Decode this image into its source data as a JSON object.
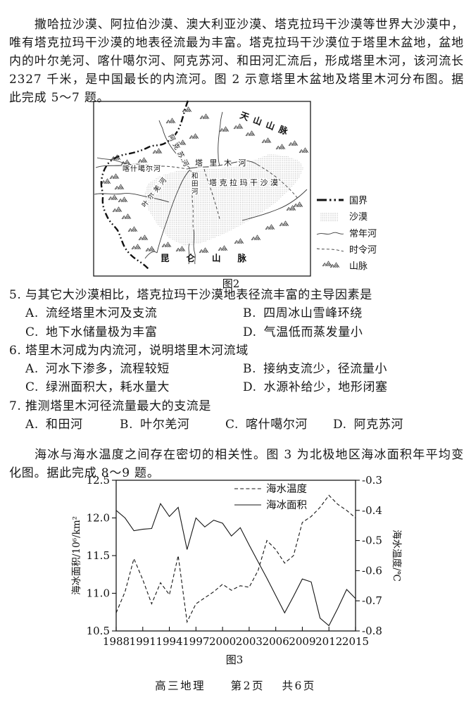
{
  "intro": {
    "text": "撒哈拉沙漠、阿拉伯沙漠、澳大利亚沙漠、塔克拉玛干沙漠等世界大沙漠中，唯有塔克拉玛干沙漠的地表径流最为丰富。塔克拉玛干沙漠位于塔里木盆地，盆地内的叶尔羌河、喀什噶尔河、阿克苏河、和田河汇流后，形成塔里木河，该河流长 2327 千米，是中国最长的内流河。图 2 示意塔里木盆地及塔里木河分布图。据此完成 5～7 题。"
  },
  "figure2": {
    "caption": "图2",
    "mountain_labels": {
      "tianshan": "天山山脉",
      "kunlun": "昆仑山脉"
    },
    "river_labels": {
      "aksu": "阿克苏河",
      "kashgar": "喀什噶尔河",
      "tarim": "塔里木河",
      "hotan": "和田河",
      "yarkand": "叶尔羌河"
    },
    "desert_label": "塔克拉玛干沙漠",
    "legend": [
      {
        "label": "国界"
      },
      {
        "label": "沙漠"
      },
      {
        "label": "常年河"
      },
      {
        "label": "时令河"
      },
      {
        "label": "山脉"
      }
    ]
  },
  "questions": [
    {
      "number": "5.",
      "stem": "与其它大沙漠相比，塔克拉玛干沙漠地表径流丰富的主导因素是",
      "options": [
        {
          "label": "A.",
          "text": "流经塔里木河及支流"
        },
        {
          "label": "B.",
          "text": "四周冰山雪峰环绕"
        },
        {
          "label": "C.",
          "text": "地下水储量极为丰富"
        },
        {
          "label": "D.",
          "text": "气温低而蒸发量小"
        }
      ]
    },
    {
      "number": "6.",
      "stem": "塔里木河成为内流河，说明塔里木河流域",
      "options": [
        {
          "label": "A.",
          "text": "河水下渗多，流程较短"
        },
        {
          "label": "B.",
          "text": "接纳支流少，径流量小"
        },
        {
          "label": "C.",
          "text": "绿洲面积大，耗水量大"
        },
        {
          "label": "D.",
          "text": "水源补给少，地形闭塞"
        }
      ]
    },
    {
      "number": "7.",
      "stem": "推测塔里木河径流量最大的支流是",
      "options": [
        {
          "label": "A.",
          "text": "和田河"
        },
        {
          "label": "B.",
          "text": "叶尔羌河"
        },
        {
          "label": "C.",
          "text": "喀什噶尔河"
        },
        {
          "label": "D.",
          "text": "阿克苏河"
        }
      ]
    }
  ],
  "passage2": {
    "text": "海冰与海水温度之间存在密切的相关性。图 3 为北极地区海冰面积年平均变化图。据此完成 8～9 题。"
  },
  "chart_data": {
    "type": "line",
    "caption": "图3",
    "x": [
      1988,
      1989,
      1990,
      1991,
      1992,
      1993,
      1994,
      1995,
      1996,
      1997,
      1998,
      1999,
      2000,
      2001,
      2002,
      2003,
      2004,
      2005,
      2006,
      2007,
      2008,
      2009,
      2010,
      2011,
      2012,
      2013,
      2014,
      2015
    ],
    "x_ticks": [
      1988,
      1991,
      1994,
      1997,
      2000,
      2003,
      2006,
      2009,
      2012,
      2015
    ],
    "left_axis": {
      "label": "海冰面积/10⁶/km²",
      "range": [
        10.5,
        12.5
      ],
      "ticks": [
        12.5,
        12.0,
        11.5,
        11.0,
        10.5
      ]
    },
    "right_axis": {
      "label": "海水温度/℃",
      "range": [
        -0.8,
        -0.3
      ],
      "ticks": [
        -0.3,
        -0.4,
        -0.5,
        -0.6,
        -0.7,
        -0.8
      ]
    },
    "grid": false,
    "legend_position": "top-right-inside",
    "series": [
      {
        "name": "海水温度",
        "style": "dashed",
        "axis": "right",
        "values": [
          -0.74,
          -0.67,
          -0.56,
          -0.63,
          -0.71,
          -0.64,
          -0.68,
          -0.55,
          -0.77,
          -0.71,
          -0.69,
          -0.67,
          -0.645,
          -0.665,
          -0.65,
          -0.655,
          -0.6,
          -0.5,
          -0.53,
          -0.575,
          -0.55,
          -0.44,
          -0.42,
          -0.39,
          -0.35,
          -0.38,
          -0.4,
          -0.425
        ]
      },
      {
        "name": "海冰面积",
        "style": "solid",
        "axis": "left",
        "values": [
          12.1,
          12.0,
          11.83,
          11.85,
          11.86,
          12.19,
          12.02,
          12.14,
          11.58,
          12.0,
          11.88,
          11.97,
          11.93,
          11.76,
          11.87,
          11.64,
          11.42,
          11.2,
          10.97,
          10.74,
          10.96,
          11.19,
          11.15,
          10.67,
          10.57,
          10.8,
          11.05,
          10.93
        ]
      }
    ]
  },
  "footer": {
    "subject": "高三地理",
    "page": "第2页",
    "total": "共6页"
  }
}
